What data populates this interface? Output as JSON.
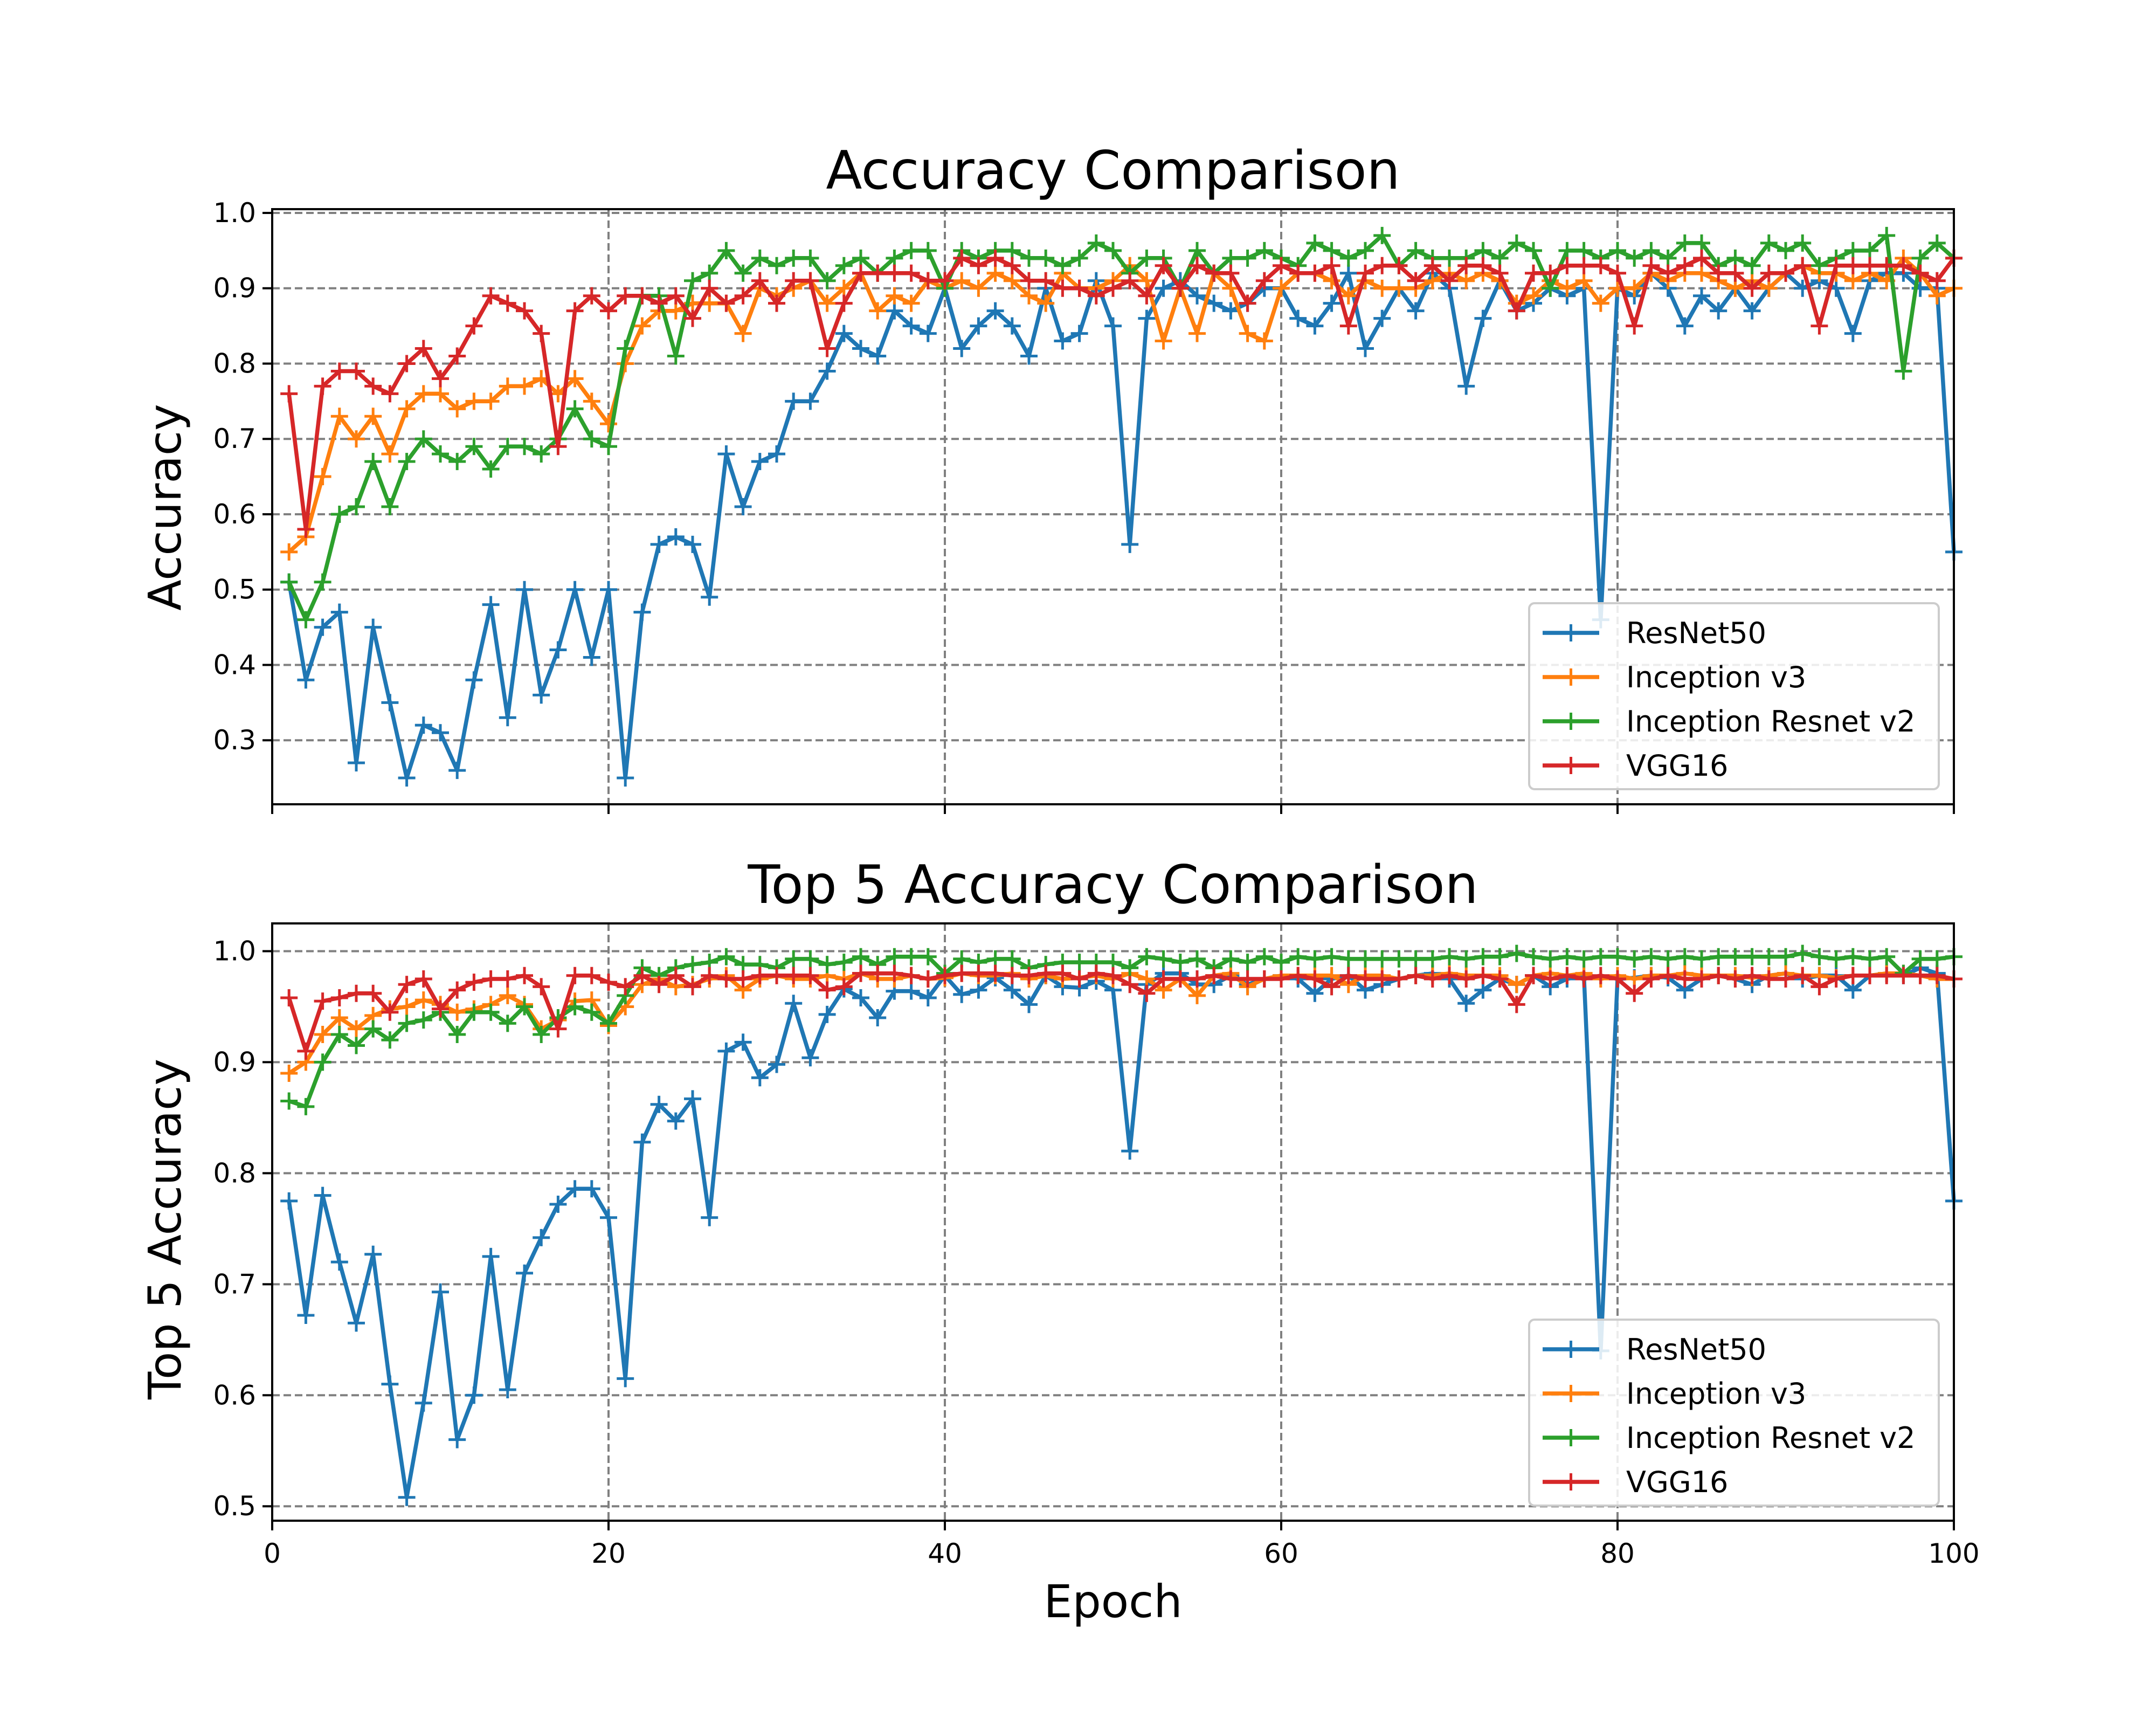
{
  "chart_data": [
    {
      "type": "line",
      "title": "Accuracy Comparison",
      "xlabel": "",
      "ylabel": "Accuracy",
      "xlim": [
        0,
        100
      ],
      "ylim": [
        0.215,
        1.005
      ],
      "xticks": [
        0,
        20,
        40,
        60,
        80,
        100
      ],
      "yticks": [
        0.3,
        0.4,
        0.5,
        0.6,
        0.7,
        0.8,
        0.9,
        1.0
      ],
      "ytick_labels": [
        "0.3",
        "0.4",
        "0.5",
        "0.6",
        "0.7",
        "0.8",
        "0.9",
        "1.0"
      ],
      "xtick_labels_shown": false,
      "grid": "dashed",
      "marker": "+",
      "legend": "lower-right",
      "series": [
        {
          "name": "ResNet50",
          "color": "#1f77b4",
          "values": [
            0.51,
            0.38,
            0.45,
            0.47,
            0.27,
            0.45,
            0.35,
            0.25,
            0.32,
            0.31,
            0.26,
            0.38,
            0.48,
            0.33,
            0.5,
            0.36,
            0.42,
            0.5,
            0.41,
            0.5,
            0.25,
            0.47,
            0.56,
            0.57,
            0.56,
            0.49,
            0.68,
            0.61,
            0.67,
            0.68,
            0.75,
            0.75,
            0.79,
            0.84,
            0.82,
            0.81,
            0.87,
            0.85,
            0.84,
            0.9,
            0.82,
            0.85,
            0.87,
            0.85,
            0.81,
            0.9,
            0.83,
            0.84,
            0.91,
            0.85,
            0.56,
            0.86,
            0.9,
            0.91,
            0.89,
            0.88,
            0.87,
            0.88,
            0.9,
            0.9,
            0.86,
            0.85,
            0.88,
            0.92,
            0.82,
            0.86,
            0.9,
            0.87,
            0.92,
            0.9,
            0.77,
            0.86,
            0.91,
            0.87,
            0.88,
            0.9,
            0.89,
            0.9,
            0.46,
            0.9,
            0.89,
            0.92,
            0.9,
            0.85,
            0.89,
            0.87,
            0.9,
            0.87,
            0.9,
            0.92,
            0.9,
            0.91,
            0.9,
            0.84,
            0.91,
            0.92,
            0.92,
            0.9,
            0.9,
            0.55
          ]
        },
        {
          "name": "Inception v3",
          "color": "#ff7f0e",
          "values": [
            0.55,
            0.57,
            0.65,
            0.73,
            0.7,
            0.73,
            0.68,
            0.74,
            0.76,
            0.76,
            0.74,
            0.75,
            0.75,
            0.77,
            0.77,
            0.78,
            0.76,
            0.78,
            0.75,
            0.72,
            0.8,
            0.85,
            0.87,
            0.87,
            0.88,
            0.88,
            0.88,
            0.84,
            0.9,
            0.89,
            0.9,
            0.91,
            0.88,
            0.9,
            0.92,
            0.87,
            0.89,
            0.88,
            0.91,
            0.9,
            0.91,
            0.9,
            0.92,
            0.91,
            0.89,
            0.88,
            0.92,
            0.9,
            0.9,
            0.91,
            0.93,
            0.91,
            0.83,
            0.9,
            0.84,
            0.92,
            0.9,
            0.84,
            0.83,
            0.9,
            0.92,
            0.92,
            0.91,
            0.89,
            0.91,
            0.9,
            0.9,
            0.9,
            0.91,
            0.92,
            0.91,
            0.92,
            0.91,
            0.88,
            0.89,
            0.91,
            0.9,
            0.91,
            0.88,
            0.9,
            0.9,
            0.92,
            0.91,
            0.92,
            0.92,
            0.91,
            0.9,
            0.91,
            0.9,
            0.92,
            0.93,
            0.92,
            0.92,
            0.91,
            0.92,
            0.91,
            0.94,
            0.92,
            0.89,
            0.9
          ]
        },
        {
          "name": "Inception Resnet v2",
          "color": "#2ca02c",
          "values": [
            0.51,
            0.46,
            0.51,
            0.6,
            0.61,
            0.67,
            0.61,
            0.67,
            0.7,
            0.68,
            0.67,
            0.69,
            0.66,
            0.69,
            0.69,
            0.68,
            0.7,
            0.74,
            0.7,
            0.69,
            0.82,
            0.89,
            0.89,
            0.81,
            0.91,
            0.92,
            0.95,
            0.92,
            0.94,
            0.93,
            0.94,
            0.94,
            0.91,
            0.93,
            0.94,
            0.92,
            0.94,
            0.95,
            0.95,
            0.9,
            0.95,
            0.94,
            0.95,
            0.95,
            0.94,
            0.94,
            0.93,
            0.94,
            0.96,
            0.95,
            0.92,
            0.94,
            0.94,
            0.9,
            0.95,
            0.92,
            0.94,
            0.94,
            0.95,
            0.94,
            0.93,
            0.96,
            0.95,
            0.94,
            0.95,
            0.97,
            0.93,
            0.95,
            0.94,
            0.94,
            0.94,
            0.95,
            0.94,
            0.96,
            0.95,
            0.9,
            0.95,
            0.95,
            0.94,
            0.95,
            0.94,
            0.95,
            0.94,
            0.96,
            0.96,
            0.93,
            0.94,
            0.93,
            0.96,
            0.95,
            0.96,
            0.93,
            0.94,
            0.95,
            0.95,
            0.97,
            0.79,
            0.94,
            0.96,
            0.94
          ]
        },
        {
          "name": "VGG16",
          "color": "#d62728",
          "values": [
            0.76,
            0.58,
            0.77,
            0.79,
            0.79,
            0.77,
            0.76,
            0.8,
            0.82,
            0.78,
            0.81,
            0.85,
            0.89,
            0.88,
            0.87,
            0.84,
            0.69,
            0.87,
            0.89,
            0.87,
            0.89,
            0.89,
            0.88,
            0.89,
            0.86,
            0.9,
            0.88,
            0.89,
            0.91,
            0.88,
            0.91,
            0.91,
            0.82,
            0.88,
            0.92,
            0.92,
            0.92,
            0.92,
            0.91,
            0.91,
            0.94,
            0.93,
            0.94,
            0.93,
            0.91,
            0.91,
            0.9,
            0.9,
            0.89,
            0.9,
            0.91,
            0.89,
            0.93,
            0.9,
            0.93,
            0.92,
            0.92,
            0.88,
            0.91,
            0.93,
            0.92,
            0.92,
            0.93,
            0.85,
            0.92,
            0.93,
            0.93,
            0.91,
            0.93,
            0.91,
            0.93,
            0.93,
            0.92,
            0.87,
            0.92,
            0.92,
            0.93,
            0.93,
            0.93,
            0.92,
            0.85,
            0.93,
            0.92,
            0.93,
            0.94,
            0.92,
            0.92,
            0.9,
            0.92,
            0.92,
            0.93,
            0.85,
            0.93,
            0.93,
            0.93,
            0.93,
            0.93,
            0.92,
            0.91,
            0.94
          ]
        }
      ]
    },
    {
      "type": "line",
      "title": "Top 5 Accuracy Comparison",
      "xlabel": "Epoch",
      "ylabel": "Top 5 Accuracy",
      "xlim": [
        0,
        100
      ],
      "ylim": [
        0.487,
        1.025
      ],
      "xticks": [
        0,
        20,
        40,
        60,
        80,
        100
      ],
      "xtick_labels": [
        "0",
        "20",
        "40",
        "60",
        "80",
        "100"
      ],
      "yticks": [
        0.5,
        0.6,
        0.7,
        0.8,
        0.9,
        1.0
      ],
      "ytick_labels": [
        "0.5",
        "0.6",
        "0.7",
        "0.8",
        "0.9",
        "1.0"
      ],
      "xtick_labels_shown": true,
      "grid": "dashed",
      "marker": "+",
      "legend": "lower-right",
      "series": [
        {
          "name": "ResNet50",
          "color": "#1f77b4",
          "values": [
            0.775,
            0.672,
            0.78,
            0.72,
            0.665,
            0.727,
            0.61,
            0.508,
            0.593,
            0.693,
            0.56,
            0.6,
            0.725,
            0.605,
            0.71,
            0.742,
            0.772,
            0.786,
            0.786,
            0.76,
            0.615,
            0.828,
            0.862,
            0.847,
            0.867,
            0.76,
            0.91,
            0.918,
            0.886,
            0.898,
            0.953,
            0.904,
            0.943,
            0.966,
            0.958,
            0.94,
            0.964,
            0.964,
            0.958,
            0.978,
            0.961,
            0.965,
            0.976,
            0.965,
            0.952,
            0.978,
            0.968,
            0.967,
            0.973,
            0.965,
            0.82,
            0.97,
            0.98,
            0.98,
            0.97,
            0.97,
            0.978,
            0.97,
            0.975,
            0.978,
            0.975,
            0.962,
            0.975,
            0.978,
            0.965,
            0.97,
            0.975,
            0.978,
            0.98,
            0.975,
            0.953,
            0.965,
            0.975,
            0.97,
            0.978,
            0.968,
            0.975,
            0.978,
            0.64,
            0.975,
            0.976,
            0.978,
            0.976,
            0.965,
            0.975,
            0.978,
            0.975,
            0.97,
            0.978,
            0.98,
            0.975,
            0.978,
            0.978,
            0.965,
            0.978,
            0.98,
            0.978,
            0.985,
            0.98,
            0.775
          ]
        },
        {
          "name": "Inception v3",
          "color": "#ff7f0e",
          "values": [
            0.89,
            0.9,
            0.925,
            0.94,
            0.93,
            0.942,
            0.948,
            0.95,
            0.956,
            0.952,
            0.945,
            0.948,
            0.952,
            0.96,
            0.952,
            0.93,
            0.938,
            0.955,
            0.956,
            0.933,
            0.95,
            0.97,
            0.975,
            0.968,
            0.97,
            0.975,
            0.978,
            0.965,
            0.975,
            0.978,
            0.975,
            0.975,
            0.978,
            0.975,
            0.98,
            0.975,
            0.975,
            0.978,
            0.975,
            0.976,
            0.98,
            0.978,
            0.978,
            0.98,
            0.975,
            0.978,
            0.975,
            0.976,
            0.978,
            0.975,
            0.98,
            0.975,
            0.965,
            0.975,
            0.96,
            0.978,
            0.98,
            0.968,
            0.975,
            0.978,
            0.978,
            0.978,
            0.978,
            0.97,
            0.978,
            0.978,
            0.975,
            0.978,
            0.978,
            0.98,
            0.978,
            0.978,
            0.978,
            0.97,
            0.978,
            0.98,
            0.978,
            0.98,
            0.975,
            0.978,
            0.975,
            0.978,
            0.978,
            0.98,
            0.978,
            0.978,
            0.978,
            0.976,
            0.978,
            0.98,
            0.978,
            0.978,
            0.976,
            0.978,
            0.978,
            0.98,
            0.98,
            0.978,
            0.975,
            0.975
          ]
        },
        {
          "name": "Inception Resnet v2",
          "color": "#2ca02c",
          "values": [
            0.865,
            0.86,
            0.9,
            0.925,
            0.915,
            0.93,
            0.92,
            0.935,
            0.938,
            0.945,
            0.925,
            0.945,
            0.945,
            0.935,
            0.95,
            0.925,
            0.94,
            0.95,
            0.945,
            0.935,
            0.96,
            0.985,
            0.978,
            0.985,
            0.988,
            0.99,
            0.995,
            0.988,
            0.988,
            0.985,
            0.993,
            0.993,
            0.988,
            0.99,
            0.995,
            0.988,
            0.995,
            0.995,
            0.995,
            0.98,
            0.993,
            0.99,
            0.993,
            0.993,
            0.985,
            0.988,
            0.99,
            0.99,
            0.99,
            0.99,
            0.985,
            0.995,
            0.993,
            0.99,
            0.993,
            0.985,
            0.993,
            0.99,
            0.995,
            0.99,
            0.995,
            0.993,
            0.995,
            0.993,
            0.993,
            0.993,
            0.993,
            0.993,
            0.993,
            0.995,
            0.993,
            0.995,
            0.995,
            0.998,
            0.995,
            0.993,
            0.995,
            0.993,
            0.995,
            0.995,
            0.993,
            0.995,
            0.993,
            0.995,
            0.993,
            0.995,
            0.995,
            0.995,
            0.995,
            0.995,
            0.998,
            0.995,
            0.993,
            0.995,
            0.993,
            0.995,
            0.98,
            0.993,
            0.993,
            0.995
          ]
        },
        {
          "name": "VGG16",
          "color": "#d62728",
          "values": [
            0.958,
            0.91,
            0.955,
            0.958,
            0.962,
            0.962,
            0.945,
            0.97,
            0.975,
            0.948,
            0.965,
            0.972,
            0.975,
            0.975,
            0.978,
            0.968,
            0.93,
            0.978,
            0.978,
            0.972,
            0.968,
            0.978,
            0.97,
            0.978,
            0.968,
            0.978,
            0.975,
            0.975,
            0.978,
            0.978,
            0.978,
            0.978,
            0.965,
            0.968,
            0.98,
            0.98,
            0.98,
            0.978,
            0.975,
            0.978,
            0.98,
            0.98,
            0.98,
            0.978,
            0.978,
            0.98,
            0.98,
            0.975,
            0.98,
            0.978,
            0.97,
            0.962,
            0.975,
            0.975,
            0.975,
            0.978,
            0.975,
            0.975,
            0.975,
            0.975,
            0.978,
            0.975,
            0.968,
            0.978,
            0.975,
            0.975,
            0.975,
            0.978,
            0.975,
            0.978,
            0.975,
            0.978,
            0.975,
            0.952,
            0.978,
            0.975,
            0.978,
            0.975,
            0.978,
            0.975,
            0.962,
            0.975,
            0.978,
            0.975,
            0.975,
            0.978,
            0.975,
            0.978,
            0.975,
            0.975,
            0.978,
            0.968,
            0.975,
            0.978,
            0.978,
            0.978,
            0.978,
            0.978,
            0.978,
            0.975
          ]
        }
      ]
    }
  ]
}
